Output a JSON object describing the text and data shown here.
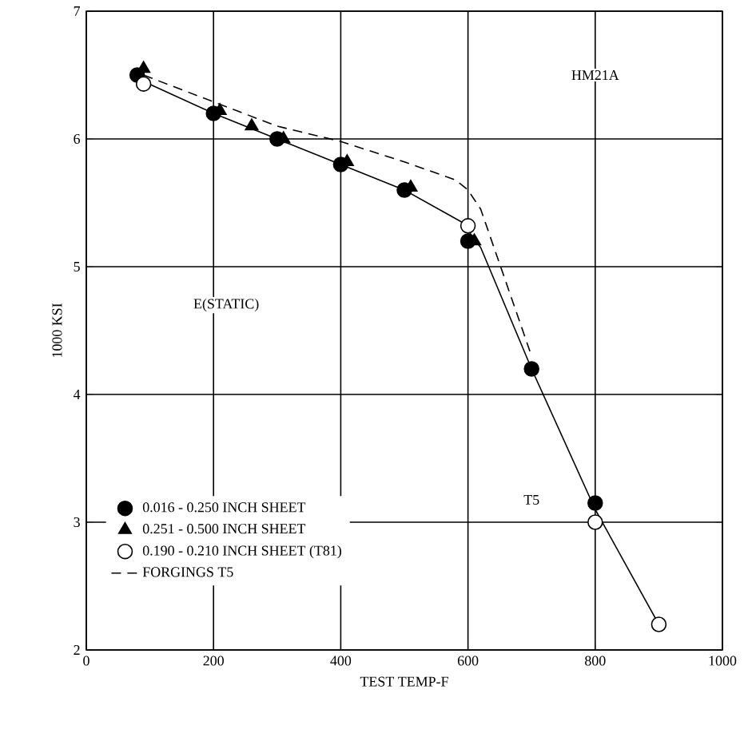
{
  "chart_data": {
    "type": "line",
    "xlabel": "TEST TEMP-F",
    "ylabel": "1000 KSI",
    "annotations": [
      "HM21A",
      "E(STATIC)",
      "T5"
    ],
    "xlim": [
      0,
      1000
    ],
    "ylim": [
      2,
      7
    ],
    "xticks": [
      0,
      200,
      400,
      600,
      800,
      1000
    ],
    "yticks": [
      2,
      3,
      4,
      5,
      6,
      7
    ],
    "grid": true,
    "legend": "bottom left",
    "series": [
      {
        "color": "#000000",
        "marker": "none",
        "line_style": "solid",
        "x": [
          90,
          200,
          300,
          400,
          500,
          590,
          620,
          700,
          800,
          900
        ],
        "values": [
          6.45,
          6.2,
          6.0,
          5.8,
          5.6,
          5.35,
          5.15,
          4.2,
          3.1,
          2.2
        ]
      },
      {
        "type": "scatter",
        "name": "0.016 - 0.250 INCH SHEET",
        "color": "#000000",
        "marker": "circle",
        "x": [
          80,
          200,
          300,
          400,
          500,
          600,
          700,
          800
        ],
        "values": [
          6.5,
          6.2,
          6.0,
          5.8,
          5.6,
          5.2,
          4.2,
          3.15
        ]
      },
      {
        "type": "scatter",
        "name": "0.251 - 0.500 INCH SHEET",
        "color": "#000000",
        "marker": "triangle",
        "x": [
          90,
          210,
          260,
          310,
          410,
          510,
          610
        ],
        "values": [
          6.55,
          6.22,
          6.1,
          6.0,
          5.82,
          5.62,
          5.2
        ]
      },
      {
        "type": "scatter",
        "name": "0.190 - 0.210 INCH SHEET (T81)",
        "color": "#ffffff",
        "marker": "circle",
        "x": [
          90,
          600,
          800,
          900
        ],
        "values": [
          6.43,
          5.32,
          3.0,
          2.2
        ]
      },
      {
        "name": "FORGINGS T5",
        "color": "#000000",
        "marker": "none",
        "line_style": "dashed",
        "x": [
          90,
          300,
          400,
          500,
          580,
          600,
          620,
          700
        ],
        "values": [
          6.5,
          6.1,
          5.98,
          5.82,
          5.68,
          5.6,
          5.45,
          4.3
        ]
      }
    ]
  }
}
